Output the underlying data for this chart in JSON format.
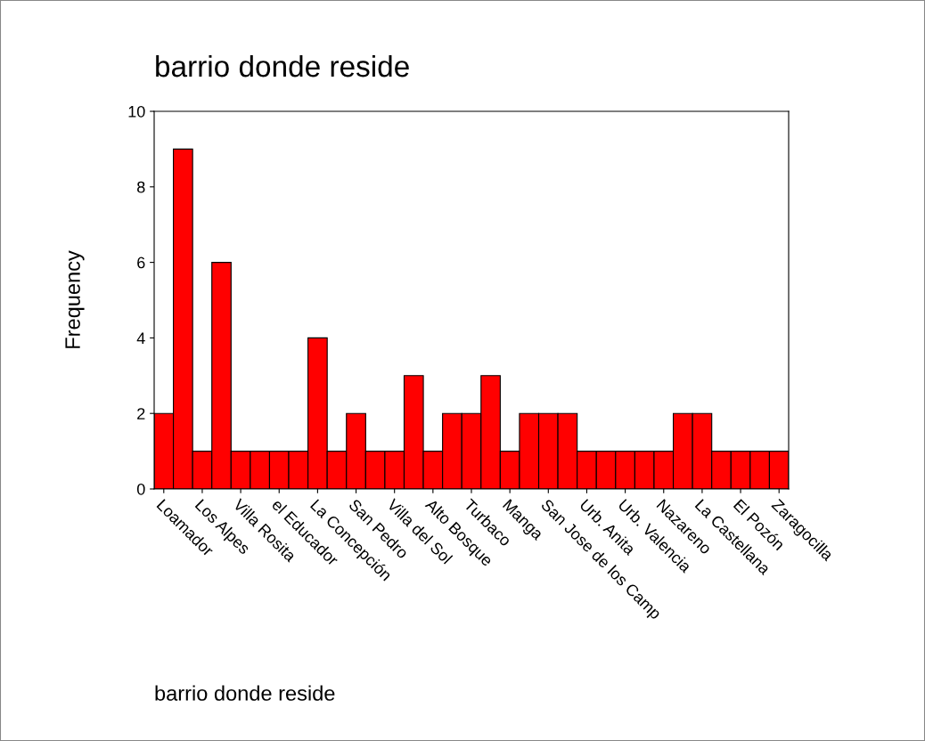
{
  "chart_data": {
    "type": "bar",
    "title": "barrio donde reside",
    "xlabel": "barrio donde reside",
    "ylabel": "Frequency",
    "categories": [
      "Loamador",
      null,
      "Los Alpes",
      null,
      "Villa Rosita",
      null,
      "el Educador",
      null,
      "La Concepción",
      null,
      "San Pedro",
      null,
      "Villa del Sol",
      null,
      "Alto Bosque",
      null,
      "Turbaco",
      null,
      "Manga",
      null,
      "San Jose de los Camp",
      null,
      "Urb. Anita",
      null,
      "Urb. Valencia",
      null,
      "Nazareno",
      null,
      "La Castellana",
      null,
      "El Pozón",
      null,
      "Zaragocilla"
    ],
    "values": [
      2,
      9,
      1,
      6,
      1,
      1,
      1,
      1,
      4,
      1,
      2,
      1,
      1,
      3,
      1,
      2,
      2,
      3,
      1,
      2,
      2,
      2,
      1,
      1,
      1,
      1,
      1,
      2,
      2,
      1,
      1,
      1,
      1
    ],
    "color": "#ff0000",
    "ylim": [
      0,
      10
    ],
    "yticks": [
      0,
      2,
      4,
      6,
      8,
      10
    ],
    "grid": false,
    "legend": false
  }
}
